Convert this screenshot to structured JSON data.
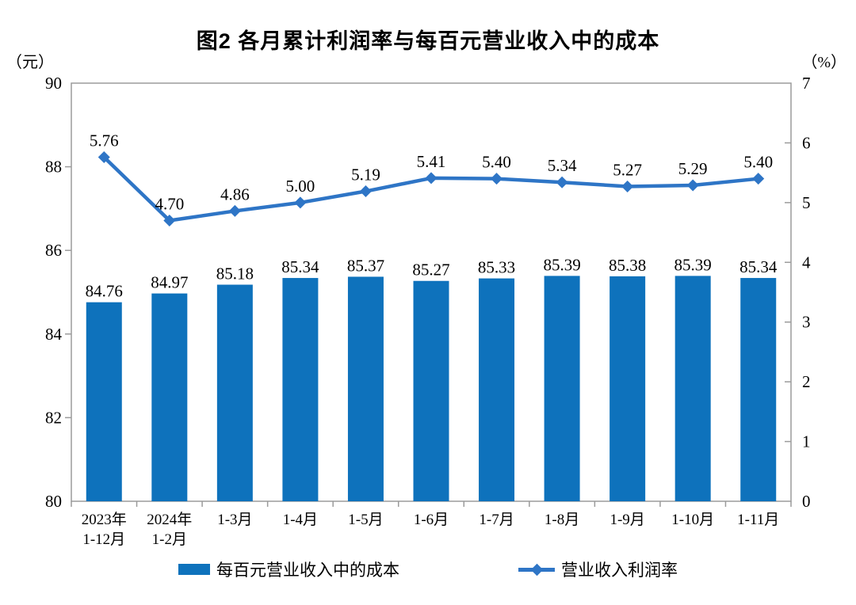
{
  "chart_data": {
    "type": "bar+line combo",
    "title": "图2 各月累计利润率与每百元营业收入中的成本",
    "grid": false,
    "legend_position": "bottom",
    "left_axis": {
      "unit": "（元）",
      "min": 80,
      "max": 90,
      "ticks": [
        80,
        82,
        84,
        86,
        88,
        90
      ]
    },
    "right_axis": {
      "unit": "（%）",
      "min": 0,
      "max": 7,
      "ticks": [
        0,
        1,
        2,
        3,
        4,
        5,
        6,
        7
      ]
    },
    "categories": [
      [
        "2023年",
        "1-12月"
      ],
      [
        "2024年",
        "1-2月"
      ],
      [
        "1-3月"
      ],
      [
        "1-4月"
      ],
      [
        "1-5月"
      ],
      [
        "1-6月"
      ],
      [
        "1-7月"
      ],
      [
        "1-8月"
      ],
      [
        "1-9月"
      ],
      [
        "1-10月"
      ],
      [
        "1-11月"
      ]
    ],
    "series": [
      {
        "name": "每百元营业收入中的成本",
        "type": "bar",
        "axis": "left",
        "color": "#0E72BC",
        "values": [
          84.76,
          84.97,
          85.18,
          85.34,
          85.37,
          85.27,
          85.33,
          85.39,
          85.38,
          85.39,
          85.34
        ]
      },
      {
        "name": "营业收入利润率",
        "type": "line",
        "axis": "right",
        "color": "#2E75C6",
        "values": [
          5.76,
          4.7,
          4.86,
          5.0,
          5.19,
          5.41,
          5.4,
          5.34,
          5.27,
          5.29,
          5.4
        ]
      }
    ],
    "colors": {
      "frame": "#9b9b9b",
      "text": "#000000"
    }
  }
}
